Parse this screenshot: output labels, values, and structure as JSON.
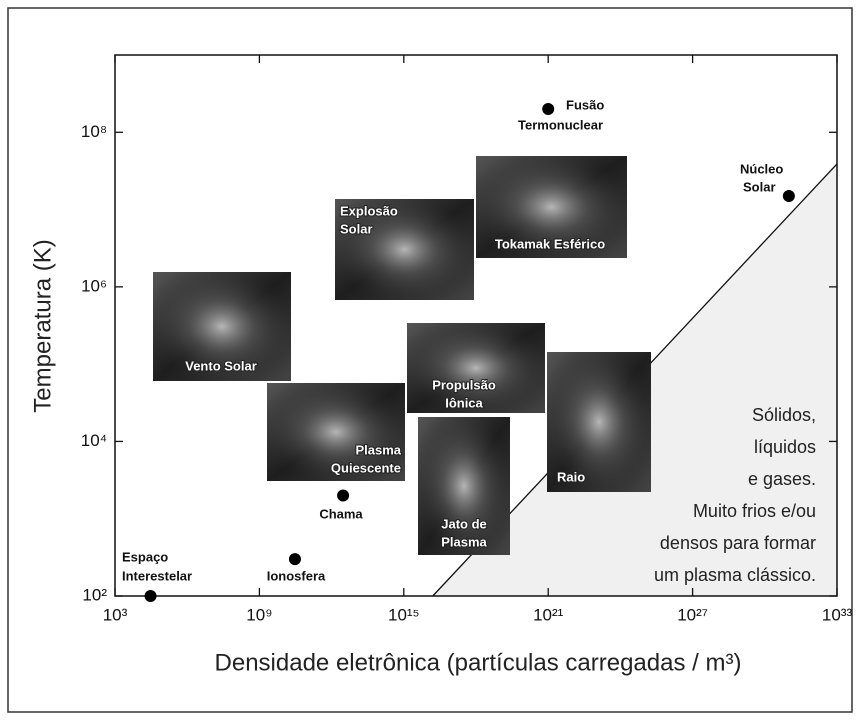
{
  "chart_data": {
    "type": "scatter",
    "xlabel": "Densidade eletrônica (partículas carregadas / m³)",
    "ylabel": "Temperatura (K)",
    "xscale": "log",
    "yscale": "log",
    "xlim": [
      1000.0,
      1e+33
    ],
    "ylim": [
      100,
      1000000000.0
    ],
    "xticks": [
      {
        "value": 1000.0,
        "label": "10³"
      },
      {
        "value": 1000000000.0,
        "label": "10⁹"
      },
      {
        "value": 1000000000000000.0,
        "label": "10¹⁵"
      },
      {
        "value": 1e+21,
        "label": "10²¹"
      },
      {
        "value": 1e+27,
        "label": "10²⁷"
      },
      {
        "value": 1e+33,
        "label": "10³³"
      }
    ],
    "yticks": [
      {
        "value": 100,
        "label": "10²"
      },
      {
        "value": 10000.0,
        "label": "10⁴"
      },
      {
        "value": 1000000.0,
        "label": "10⁶"
      },
      {
        "value": 100000000.0,
        "label": "10⁸"
      }
    ],
    "color": "#000000",
    "x": [
      30000.0,
      30000000000.0,
      3000000000000.0,
      1e+21,
      1e+31
    ],
    "values": [
      100,
      300,
      2000,
      200000000.0,
      15000000.0
    ],
    "point_labels": [
      [
        "Espaço",
        "Interestelar"
      ],
      [
        "Ionosfera"
      ],
      [
        "Chama"
      ],
      [
        "Fusão",
        "Termonuclear"
      ],
      [
        "Núcleo",
        "Solar"
      ]
    ],
    "boundary": {
      "x": [
        1.6e+16,
        1e+33
      ],
      "y": [
        100,
        39000000.0
      ]
    },
    "boundary_fill": "#f0f0f0",
    "images": [
      {
        "label": [
          "Vento Solar"
        ]
      },
      {
        "label": [
          "Explosão",
          "Solar"
        ]
      },
      {
        "label": [
          "Tokamak Esférico"
        ]
      },
      {
        "label": [
          "Propulsão",
          "Iônica"
        ]
      },
      {
        "label": [
          "Plasma",
          "Quiescente"
        ]
      },
      {
        "label": [
          "Jato de",
          "Plasma"
        ]
      },
      {
        "label": [
          "Raio"
        ]
      }
    ],
    "annotation": [
      "Sólidos,",
      "líquidos",
      "e gases.",
      "Muito frios e/ou",
      "densos para formar",
      "um plasma clássico."
    ]
  }
}
